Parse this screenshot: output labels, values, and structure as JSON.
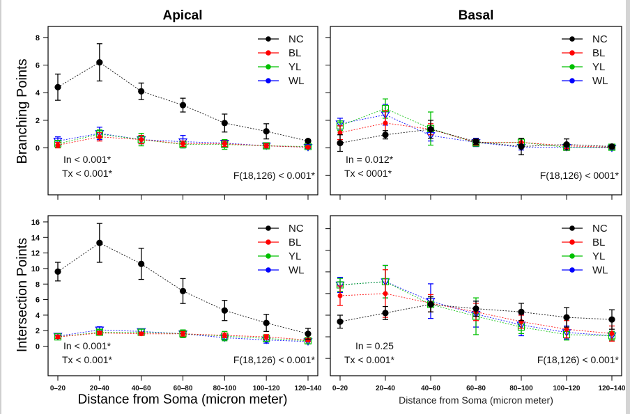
{
  "chart_data": [
    {
      "id": "apical-branching",
      "type": "line",
      "title": "Apical",
      "xlabel": "",
      "ylabel": "Branching Points",
      "categories": [
        "0-20",
        "20-40",
        "40-60",
        "60-80",
        "80-100",
        "100-120",
        "120-140"
      ],
      "yticks": [
        0,
        2,
        4,
        6,
        8
      ],
      "ytick_labels_visible": true,
      "ylim": [
        -3.4,
        8.8
      ],
      "series": [
        {
          "name": "NC",
          "color": "#000000",
          "marker": "filled-circle",
          "values": [
            4.4,
            6.2,
            4.1,
            3.1,
            1.8,
            1.2,
            0.5
          ],
          "err": [
            0.95,
            1.35,
            0.6,
            0.5,
            0.65,
            0.55,
            0.1
          ]
        },
        {
          "name": "BL",
          "color": "#ff0000",
          "marker": "small-circle",
          "values": [
            0.2,
            0.8,
            0.6,
            0.3,
            0.3,
            0.15,
            0.05
          ],
          "err": [
            0.2,
            0.3,
            0.3,
            0.2,
            0.2,
            0.15,
            0.05
          ]
        },
        {
          "name": "YL",
          "color": "#00c000",
          "marker": "square",
          "values": [
            0.3,
            1.0,
            0.6,
            0.25,
            0.25,
            0.15,
            0.1
          ],
          "err": [
            0.25,
            0.3,
            0.45,
            0.25,
            0.35,
            0.15,
            0.1
          ]
        },
        {
          "name": "WL",
          "color": "#0000ff",
          "marker": "triangle-down",
          "values": [
            0.5,
            1.05,
            0.6,
            0.45,
            0.35,
            0.15,
            0.05
          ],
          "err": [
            0.3,
            0.45,
            0.3,
            0.45,
            0.25,
            0.15,
            0.1
          ]
        }
      ],
      "annotations": [
        "In < 0.001*",
        "Tx < 0.001*",
        "F(18,126) < 0.001*"
      ],
      "legend": [
        "NC",
        "BL",
        "YL",
        "WL"
      ],
      "legend_position": "top-right"
    },
    {
      "id": "basal-branching",
      "type": "line",
      "title": "Basal",
      "xlabel": "",
      "ylabel": "",
      "categories": [
        "0-20",
        "20-40",
        "40-60",
        "60-80",
        "80-100",
        "100-120",
        "120-140"
      ],
      "yticks": [
        -2,
        0,
        2,
        4,
        6,
        8
      ],
      "ytick_labels_visible": false,
      "ylim": [
        -3.4,
        8.8
      ],
      "series": [
        {
          "name": "NC",
          "color": "#000000",
          "marker": "filled-circle",
          "values": [
            0.35,
            0.95,
            1.35,
            0.45,
            0.1,
            0.25,
            0.1
          ],
          "err": [
            0.6,
            0.3,
            0.65,
            0.2,
            0.6,
            0.4,
            0.1
          ]
        },
        {
          "name": "BL",
          "color": "#ff0000",
          "marker": "small-circle",
          "values": [
            1.1,
            1.8,
            1.35,
            0.4,
            0.4,
            0.15,
            0.05
          ],
          "err": [
            0.5,
            0.9,
            0.4,
            0.2,
            0.3,
            0.2,
            0.1
          ]
        },
        {
          "name": "YL",
          "color": "#00c000",
          "marker": "square",
          "values": [
            1.6,
            2.85,
            1.4,
            0.35,
            0.4,
            0.05,
            0.05
          ],
          "err": [
            0.35,
            0.7,
            1.2,
            0.2,
            0.3,
            0.2,
            0.1
          ]
        },
        {
          "name": "WL",
          "color": "#0000ff",
          "marker": "triangle-down",
          "values": [
            1.75,
            2.4,
            0.9,
            0.4,
            0.05,
            0.05,
            0.0
          ],
          "err": [
            0.4,
            0.75,
            0.4,
            0.3,
            0.2,
            0.2,
            0.1
          ]
        }
      ],
      "annotations": [
        "In = 0.012*",
        "Tx < 0001*",
        "F(18,126) < 0001*"
      ],
      "legend": [
        "NC",
        "BL",
        "YL",
        "WL"
      ],
      "legend_position": "top-right"
    },
    {
      "id": "apical-intersection",
      "type": "line",
      "title": "",
      "xlabel": "Distance from Soma (micron meter)",
      "ylabel": "Intersection Points",
      "categories": [
        "0-20",
        "20-40",
        "40-60",
        "60-80",
        "80-100",
        "100-120",
        "120-140"
      ],
      "yticks": [
        0,
        2,
        4,
        6,
        8,
        10,
        12,
        14,
        16
      ],
      "ytick_labels_visible": true,
      "ylim": [
        -3.8,
        16.8
      ],
      "series": [
        {
          "name": "NC",
          "color": "#000000",
          "marker": "filled-circle",
          "values": [
            9.6,
            13.3,
            10.6,
            7.1,
            4.6,
            3.0,
            1.6
          ],
          "err": [
            1.2,
            2.5,
            2.0,
            1.6,
            1.3,
            1.1,
            0.7
          ]
        },
        {
          "name": "BL",
          "color": "#ff0000",
          "marker": "small-circle",
          "values": [
            1.2,
            1.7,
            1.6,
            1.6,
            1.4,
            1.2,
            0.8
          ],
          "err": [
            0.2,
            0.2,
            0.2,
            0.3,
            0.3,
            0.3,
            0.2
          ]
        },
        {
          "name": "YL",
          "color": "#00c000",
          "marker": "square",
          "values": [
            1.2,
            1.8,
            1.8,
            1.6,
            1.3,
            1.0,
            0.7
          ],
          "err": [
            0.2,
            0.3,
            0.4,
            0.5,
            0.6,
            0.4,
            0.4
          ]
        },
        {
          "name": "WL",
          "color": "#0000ff",
          "marker": "triangle-down",
          "values": [
            1.3,
            2.1,
            1.9,
            1.6,
            1.1,
            0.8,
            0.6
          ],
          "err": [
            0.3,
            0.4,
            0.3,
            0.5,
            0.3,
            0.4,
            0.3
          ]
        }
      ],
      "annotations": [
        "In < 0.001*",
        "Tx < 0.001*",
        "F(18,126) < 0.001*"
      ],
      "legend": [
        "NC",
        "BL",
        "YL",
        "WL"
      ],
      "legend_position": "top-right"
    },
    {
      "id": "basal-intersection",
      "type": "line",
      "title": "",
      "xlabel": "Distance from Soma (micron meter)",
      "ylabel": "",
      "categories": [
        "0-20",
        "20-40",
        "40-60",
        "60-80",
        "80-100",
        "100-120",
        "120-140"
      ],
      "yticks": [
        0,
        2,
        4,
        6,
        8,
        10,
        12
      ],
      "ytick_labels_visible": false,
      "ylim": [
        -1.6,
        13.2
      ],
      "series": [
        {
          "name": "NC",
          "color": "#000000",
          "marker": "filled-circle",
          "values": [
            3.4,
            4.2,
            5.0,
            4.6,
            4.3,
            3.8,
            3.6
          ],
          "err": [
            0.6,
            0.6,
            0.7,
            0.7,
            0.8,
            0.9,
            0.9
          ]
        },
        {
          "name": "BL",
          "color": "#ff0000",
          "marker": "small-circle",
          "values": [
            5.8,
            6.0,
            5.1,
            4.3,
            3.4,
            2.7,
            2.3
          ],
          "err": [
            0.9,
            2.2,
            0.8,
            0.8,
            0.6,
            0.8,
            0.7
          ]
        },
        {
          "name": "YL",
          "color": "#00c000",
          "marker": "square",
          "values": [
            6.8,
            7.1,
            5.0,
            3.9,
            2.9,
            2.2,
            2.1
          ],
          "err": [
            0.6,
            1.5,
            0.7,
            1.7,
            0.6,
            0.5,
            0.4
          ]
        },
        {
          "name": "WL",
          "color": "#0000ff",
          "marker": "triangle-down",
          "values": [
            6.8,
            7.1,
            5.3,
            4.1,
            3.1,
            2.4,
            2.1
          ],
          "err": [
            0.7,
            1.5,
            1.6,
            1.2,
            1.0,
            0.6,
            0.4
          ]
        }
      ],
      "annotations": [
        "In = 0.25",
        "Tx < 0.001*",
        "F(18,126) < 0.001*"
      ],
      "legend": [
        "NC",
        "BL",
        "YL",
        "WL"
      ],
      "legend_position": "top-right"
    }
  ]
}
